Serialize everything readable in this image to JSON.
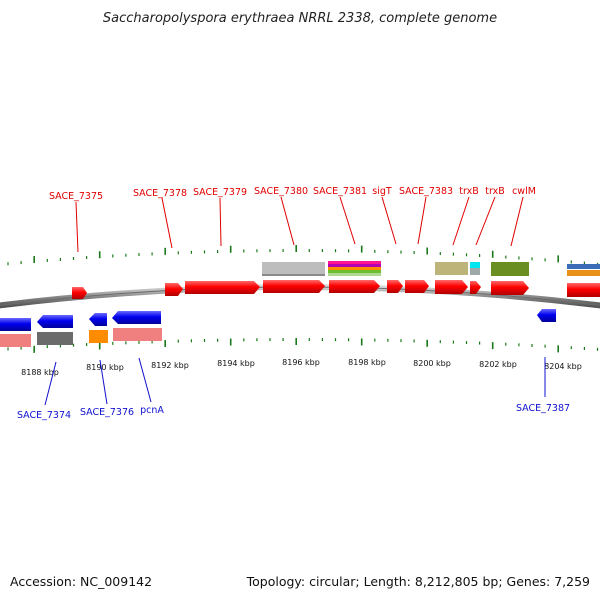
{
  "title": "Saccharopolyspora erythraea NRRL 2338, complete genome",
  "footer": {
    "accession": "Accession: NC_009142",
    "topology": "Topology: circular; Length: 8,212,805 bp; Genes: 7,259"
  },
  "axis_ticks": [
    "8188 kbp",
    "8190 kbp",
    "8192 kbp",
    "8194 kbp",
    "8196 kbp",
    "8198 kbp",
    "8200 kbp",
    "8202 kbp",
    "8204 kbp"
  ],
  "labels_top": [
    "SACE_7375",
    "SACE_7378",
    "SACE_7379",
    "SACE_7380",
    "SACE_7381",
    "sigT",
    "SACE_7383",
    "trxB",
    "trxB",
    "cwlM"
  ],
  "labels_bottom": [
    "SACE_7374",
    "SACE_7376",
    "pcnA",
    "SACE_7387"
  ],
  "colors": {
    "forward_gene": "#ff0000",
    "reverse_gene": "#0000ee",
    "top_label": "#e00000",
    "bottom_label": "#1010d0",
    "tick_mark": "#1a7a1a",
    "backbone": "#8a8a8a"
  }
}
